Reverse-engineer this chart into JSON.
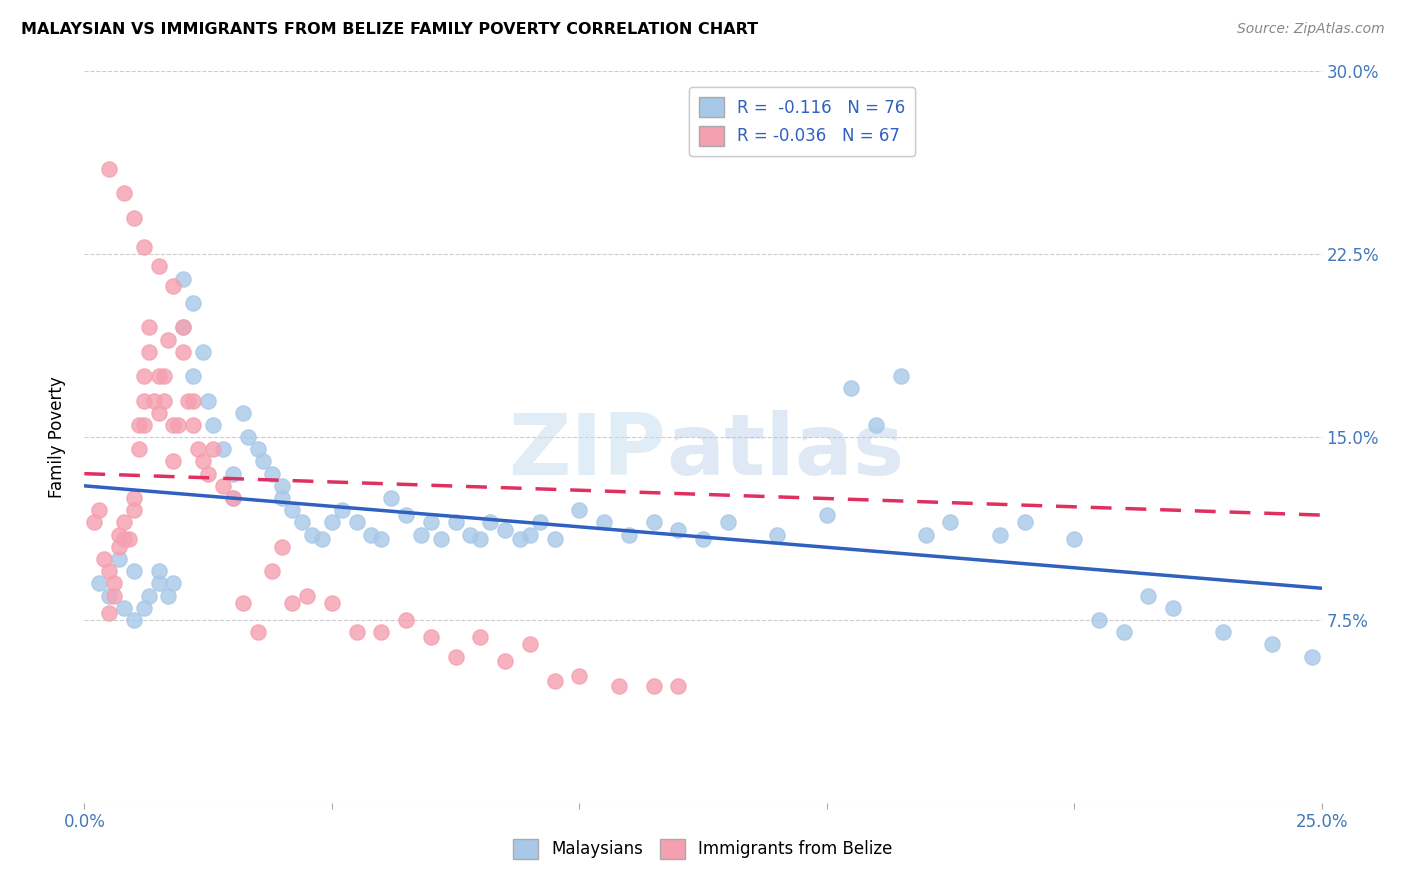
{
  "title": "MALAYSIAN VS IMMIGRANTS FROM BELIZE FAMILY POVERTY CORRELATION CHART",
  "source": "Source: ZipAtlas.com",
  "ylabel": "Family Poverty",
  "x_min": 0.0,
  "x_max": 0.25,
  "y_min": 0.0,
  "y_max": 0.3,
  "blue_color": "#a8c8e8",
  "pink_color": "#f4a0b0",
  "blue_line_color": "#3060c0",
  "pink_line_color": "#e03060",
  "legend_r_blue": "R =  -0.116",
  "legend_n_blue": "N = 76",
  "legend_r_pink": "R = -0.036",
  "legend_n_pink": "N = 67",
  "watermark": "ZIPatlas",
  "blue_scatter_x": [
    0.003,
    0.005,
    0.007,
    0.008,
    0.01,
    0.01,
    0.012,
    0.013,
    0.015,
    0.015,
    0.017,
    0.018,
    0.02,
    0.02,
    0.022,
    0.022,
    0.024,
    0.025,
    0.026,
    0.028,
    0.03,
    0.03,
    0.032,
    0.033,
    0.035,
    0.036,
    0.038,
    0.04,
    0.04,
    0.042,
    0.044,
    0.046,
    0.048,
    0.05,
    0.052,
    0.055,
    0.058,
    0.06,
    0.062,
    0.065,
    0.068,
    0.07,
    0.072,
    0.075,
    0.078,
    0.08,
    0.082,
    0.085,
    0.088,
    0.09,
    0.092,
    0.095,
    0.1,
    0.105,
    0.11,
    0.115,
    0.12,
    0.125,
    0.13,
    0.14,
    0.15,
    0.155,
    0.16,
    0.165,
    0.17,
    0.175,
    0.185,
    0.19,
    0.2,
    0.205,
    0.21,
    0.215,
    0.22,
    0.23,
    0.24,
    0.248
  ],
  "blue_scatter_y": [
    0.09,
    0.085,
    0.1,
    0.08,
    0.095,
    0.075,
    0.08,
    0.085,
    0.09,
    0.095,
    0.085,
    0.09,
    0.215,
    0.195,
    0.205,
    0.175,
    0.185,
    0.165,
    0.155,
    0.145,
    0.135,
    0.125,
    0.16,
    0.15,
    0.145,
    0.14,
    0.135,
    0.13,
    0.125,
    0.12,
    0.115,
    0.11,
    0.108,
    0.115,
    0.12,
    0.115,
    0.11,
    0.108,
    0.125,
    0.118,
    0.11,
    0.115,
    0.108,
    0.115,
    0.11,
    0.108,
    0.115,
    0.112,
    0.108,
    0.11,
    0.115,
    0.108,
    0.12,
    0.115,
    0.11,
    0.115,
    0.112,
    0.108,
    0.115,
    0.11,
    0.118,
    0.17,
    0.155,
    0.175,
    0.11,
    0.115,
    0.11,
    0.115,
    0.108,
    0.075,
    0.07,
    0.085,
    0.08,
    0.07,
    0.065,
    0.06
  ],
  "pink_scatter_x": [
    0.002,
    0.003,
    0.004,
    0.005,
    0.005,
    0.006,
    0.006,
    0.007,
    0.007,
    0.008,
    0.008,
    0.009,
    0.01,
    0.01,
    0.011,
    0.011,
    0.012,
    0.012,
    0.012,
    0.013,
    0.013,
    0.014,
    0.015,
    0.015,
    0.016,
    0.016,
    0.017,
    0.018,
    0.018,
    0.019,
    0.02,
    0.02,
    0.021,
    0.022,
    0.022,
    0.023,
    0.024,
    0.025,
    0.026,
    0.028,
    0.03,
    0.032,
    0.035,
    0.038,
    0.04,
    0.042,
    0.045,
    0.05,
    0.055,
    0.06,
    0.065,
    0.07,
    0.075,
    0.08,
    0.085,
    0.09,
    0.095,
    0.1,
    0.108,
    0.115,
    0.12,
    0.005,
    0.008,
    0.01,
    0.012,
    0.015,
    0.018
  ],
  "pink_scatter_y": [
    0.115,
    0.12,
    0.1,
    0.095,
    0.078,
    0.085,
    0.09,
    0.11,
    0.105,
    0.115,
    0.108,
    0.108,
    0.12,
    0.125,
    0.155,
    0.145,
    0.155,
    0.175,
    0.165,
    0.195,
    0.185,
    0.165,
    0.175,
    0.16,
    0.175,
    0.165,
    0.19,
    0.14,
    0.155,
    0.155,
    0.185,
    0.195,
    0.165,
    0.165,
    0.155,
    0.145,
    0.14,
    0.135,
    0.145,
    0.13,
    0.125,
    0.082,
    0.07,
    0.095,
    0.105,
    0.082,
    0.085,
    0.082,
    0.07,
    0.07,
    0.075,
    0.068,
    0.06,
    0.068,
    0.058,
    0.065,
    0.05,
    0.052,
    0.048,
    0.048,
    0.048,
    0.26,
    0.25,
    0.24,
    0.228,
    0.22,
    0.212
  ],
  "background_color": "#ffffff",
  "grid_color": "#cccccc",
  "blue_line_y0": 0.13,
  "blue_line_y1": 0.088,
  "pink_line_y0": 0.135,
  "pink_line_y1": 0.118
}
